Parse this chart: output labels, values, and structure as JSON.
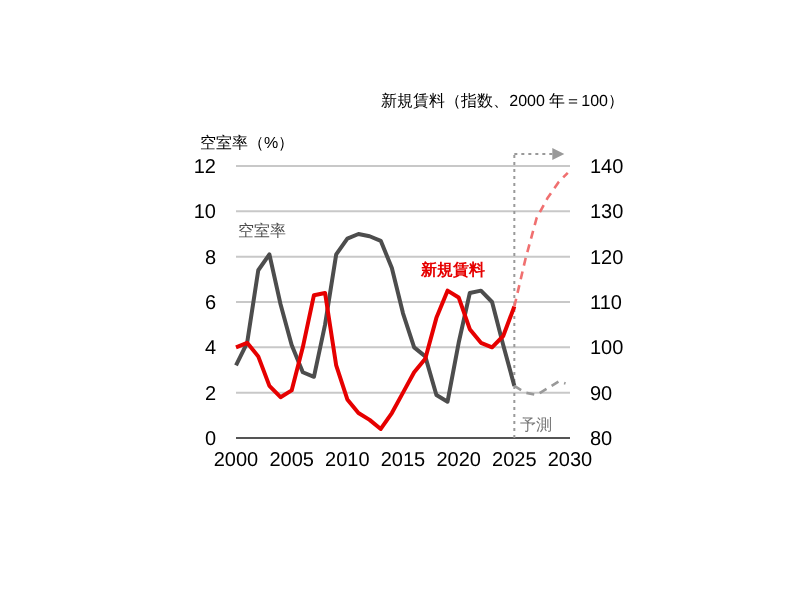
{
  "chart_data": {
    "type": "line",
    "ylabel": "空室率（%）",
    "y2label": "新規賃料（指数、2000 年＝100）",
    "xlim": [
      2000,
      2030
    ],
    "xticks": [
      2000,
      2005,
      2010,
      2015,
      2020,
      2025,
      2030
    ],
    "ylim": [
      0,
      12
    ],
    "yticks": [
      0,
      2,
      4,
      6,
      8,
      10,
      12
    ],
    "y2lim": [
      80,
      140
    ],
    "y2ticks": [
      80,
      90,
      100,
      110,
      120,
      130,
      140
    ],
    "grid": "y",
    "series": [
      {
        "name": "空室率",
        "color": "#4d4d4d",
        "line_style": "solid",
        "x": [
          2000,
          2001,
          2002,
          2003,
          2004,
          2005,
          2006,
          2007,
          2008,
          2009,
          2010,
          2011,
          2012,
          2013,
          2014,
          2015,
          2016,
          2017,
          2018,
          2019,
          2020,
          2021,
          2022,
          2023,
          2024,
          2025
        ],
        "values": [
          3.2,
          4.2,
          7.4,
          8.1,
          5.9,
          4.1,
          2.9,
          2.7,
          5,
          8.1,
          8.8,
          9,
          8.9,
          8.7,
          7.5,
          5.5,
          4,
          3.6,
          1.9,
          1.6,
          4.2,
          6.4,
          6.5,
          6,
          4.1,
          2.3
        ]
      },
      {
        "name": "新規賃料",
        "color": "#e60000",
        "axis": "y2",
        "line_style": "solid",
        "x": [
          2000,
          2001,
          2002,
          2003,
          2004,
          2005,
          2006,
          2007,
          2008,
          2009,
          2010,
          2011,
          2012,
          2013,
          2014,
          2015,
          2016,
          2017,
          2018,
          2019,
          2020,
          2021,
          2022,
          2023,
          2024,
          2025
        ],
        "values": [
          100,
          101,
          98,
          91.5,
          89,
          90.5,
          100,
          111.5,
          112,
          96,
          88.5,
          85.5,
          84,
          82,
          85.5,
          90,
          94.5,
          97.5,
          106.5,
          112.5,
          111,
          104,
          101,
          100,
          102.5,
          109
        ]
      },
      {
        "color": "#999999",
        "line_style": "dashed",
        "x": [
          2025,
          2026,
          2027,
          2028,
          2029,
          2029.6
        ],
        "values": [
          2.3,
          2,
          1.9,
          2.2,
          2.5,
          2.4
        ]
      },
      {
        "color": "#f07070",
        "axis": "y2",
        "line_style": "dashed",
        "x": [
          2025,
          2026,
          2027,
          2028,
          2029,
          2029.8
        ],
        "values": [
          109,
          119.5,
          128.5,
          133,
          136.5,
          138.5
        ]
      }
    ],
    "ref_lines": [
      {
        "axis": "x",
        "value": 2025,
        "label": "予測",
        "color": "#999999",
        "line_style": "dotted"
      }
    ]
  }
}
